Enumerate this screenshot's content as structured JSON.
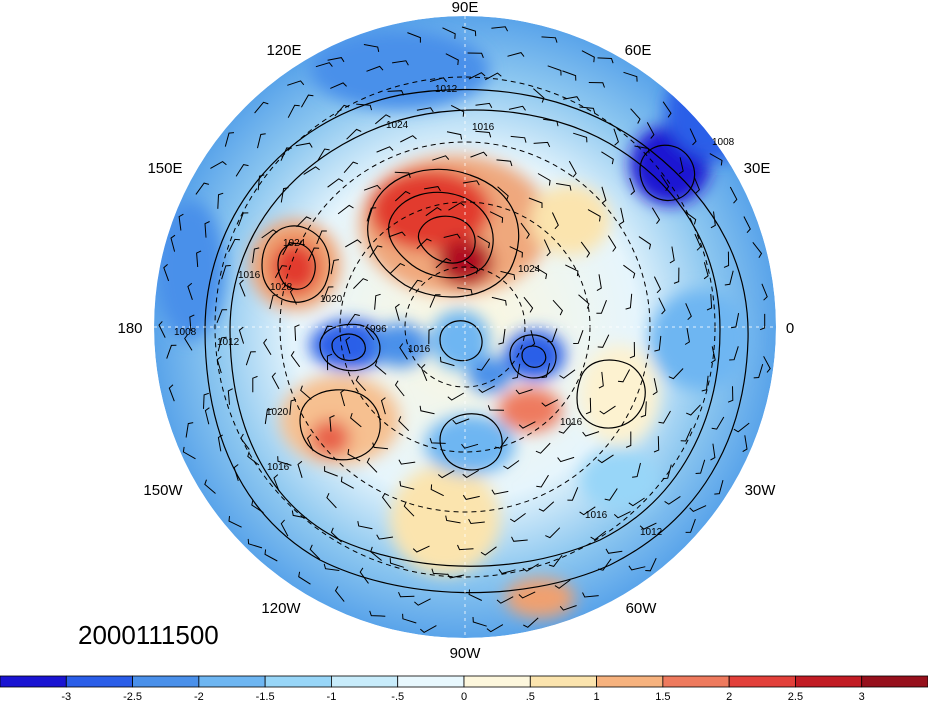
{
  "map": {
    "date_stamp": "2000111500",
    "longitude_labels": [
      {
        "id": "lon-90e",
        "text": "90E",
        "angle_deg": 90
      },
      {
        "id": "lon-60e",
        "text": "60E",
        "angle_deg": 60
      },
      {
        "id": "lon-30e",
        "text": "30E",
        "angle_deg": 30
      },
      {
        "id": "lon-0",
        "text": "0",
        "angle_deg": 0
      },
      {
        "id": "lon-30w",
        "text": "30W",
        "angle_deg": -30
      },
      {
        "id": "lon-60w",
        "text": "60W",
        "angle_deg": -60
      },
      {
        "id": "lon-90w",
        "text": "90W",
        "angle_deg": -90
      },
      {
        "id": "lon-120w",
        "text": "120W",
        "angle_deg": -120
      },
      {
        "id": "lon-150w",
        "text": "150W",
        "angle_deg": -150
      },
      {
        "id": "lon-180",
        "text": "180",
        "angle_deg": 180
      },
      {
        "id": "lon-150e",
        "text": "150E",
        "angle_deg": 150
      },
      {
        "id": "lon-120e",
        "text": "120E",
        "angle_deg": 120
      }
    ],
    "isobar_labels": [
      "1012",
      "1016",
      "1024",
      "1024",
      "1028",
      "1024",
      "1020",
      "1016",
      "1012",
      "1008",
      "1020",
      "1016",
      "1016",
      "1016",
      "1012",
      "996",
      "1016",
      "1008"
    ],
    "colors": {
      "blue_strong": "#2030d8",
      "blue": "#4f9ae8",
      "blue_light": "#9ed2f2",
      "cream": "#fbf0d2",
      "orange": "#f0a070",
      "red": "#e23a2e",
      "red_dark": "#b01020"
    }
  },
  "colorbar": {
    "tick_labels": [
      "-3",
      "-2.5",
      "-2",
      "-1.5",
      "-1",
      "-.5",
      "0",
      ".5",
      "1",
      "1.5",
      "2",
      "2.5",
      "3"
    ],
    "colors": [
      "#1a14d2",
      "#2a5ee8",
      "#4a90ea",
      "#6eb6f2",
      "#98d6f8",
      "#c8ecfb",
      "#e8f8fe",
      "#fdf7dd",
      "#fbe4ae",
      "#f6b27e",
      "#ee7a5e",
      "#e2403a",
      "#c21c24",
      "#96101c"
    ]
  }
}
